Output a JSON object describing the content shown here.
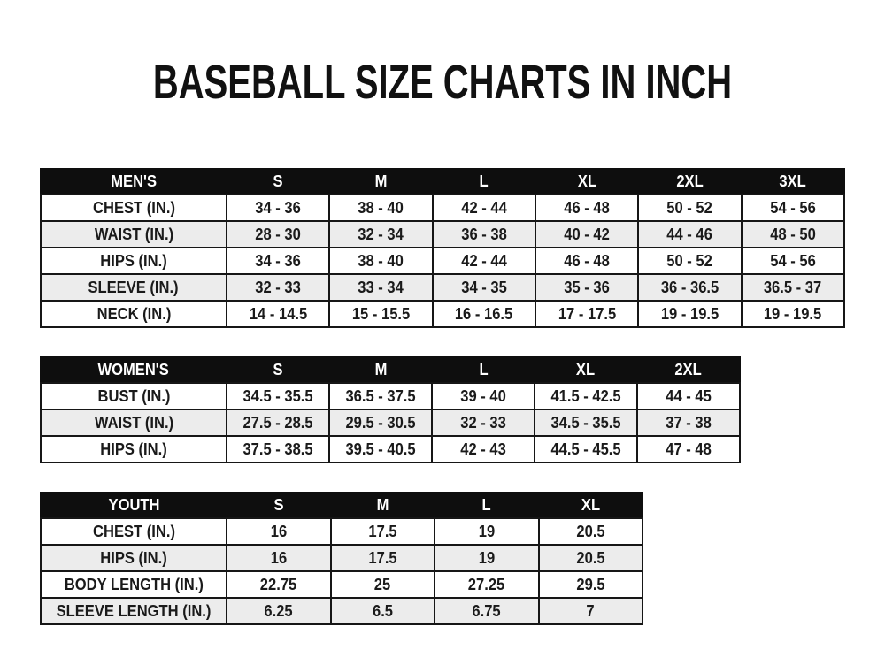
{
  "title": "BASEBALL SIZE CHARTS IN INCH",
  "colors": {
    "header_bg": "#0e0e0e",
    "header_text": "#ffffff",
    "row_alt_bg": "#ececec",
    "border": "#161616",
    "text": "#1a1a1a",
    "page_bg": "#ffffff"
  },
  "tables": [
    {
      "id": "mens",
      "header": [
        "MEN'S",
        "S",
        "M",
        "L",
        "XL",
        "2XL",
        "3XL"
      ],
      "rows": [
        {
          "label": "CHEST (IN.)",
          "values": [
            "34 - 36",
            "38 - 40",
            "42 - 44",
            "46 - 48",
            "50 - 52",
            "54 - 56"
          ]
        },
        {
          "label": "WAIST (IN.)",
          "values": [
            "28 - 30",
            "32 - 34",
            "36 - 38",
            "40 - 42",
            "44 - 46",
            "48 - 50"
          ]
        },
        {
          "label": "HIPS (IN.)",
          "values": [
            "34 - 36",
            "38 - 40",
            "42 - 44",
            "46 - 48",
            "50 - 52",
            "54 - 56"
          ]
        },
        {
          "label": "SLEEVE (IN.)",
          "values": [
            "32 - 33",
            "33 - 34",
            "34 - 35",
            "35 - 36",
            "36 - 36.5",
            "36.5 - 37"
          ]
        },
        {
          "label": "NECK (IN.)",
          "values": [
            "14 - 14.5",
            "15 - 15.5",
            "16 - 16.5",
            "17 - 17.5",
            "19 - 19.5",
            "19 - 19.5"
          ]
        }
      ]
    },
    {
      "id": "womens",
      "header": [
        "WOMEN'S",
        "S",
        "M",
        "L",
        "XL",
        "2XL"
      ],
      "rows": [
        {
          "label": "BUST (IN.)",
          "values": [
            "34.5 - 35.5",
            "36.5 - 37.5",
            "39 - 40",
            "41.5 - 42.5",
            "44 - 45"
          ]
        },
        {
          "label": "WAIST (IN.)",
          "values": [
            "27.5 - 28.5",
            "29.5 - 30.5",
            "32 - 33",
            "34.5 - 35.5",
            "37 - 38"
          ]
        },
        {
          "label": "HIPS (IN.)",
          "values": [
            "37.5 - 38.5",
            "39.5 - 40.5",
            "42 - 43",
            "44.5 - 45.5",
            "47 - 48"
          ]
        }
      ]
    },
    {
      "id": "youth",
      "header": [
        "YOUTH",
        "S",
        "M",
        "L",
        "XL"
      ],
      "rows": [
        {
          "label": "CHEST (IN.)",
          "values": [
            "16",
            "17.5",
            "19",
            "20.5"
          ]
        },
        {
          "label": "HIPS (IN.)",
          "values": [
            "16",
            "17.5",
            "19",
            "20.5"
          ]
        },
        {
          "label": "BODY LENGTH (IN.)",
          "values": [
            "22.75",
            "25",
            "27.25",
            "29.5"
          ]
        },
        {
          "label": "SLEEVE LENGTH (IN.)",
          "values": [
            "6.25",
            "6.5",
            "6.75",
            "7"
          ]
        }
      ]
    }
  ]
}
